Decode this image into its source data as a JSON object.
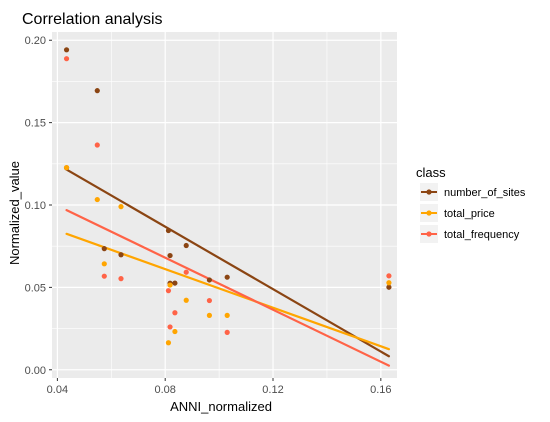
{
  "chart_data": {
    "type": "scatter",
    "title": "Correlation analysis",
    "xlabel": "ANNI_normalized",
    "ylabel": "Normalized_value",
    "xlim": [
      0.038,
      0.166
    ],
    "ylim": [
      -0.005,
      0.205
    ],
    "x_ticks": [
      {
        "value": 0.04,
        "label": "0.04"
      },
      {
        "value": 0.08,
        "label": "0.08"
      },
      {
        "value": 0.12,
        "label": "0.12"
      },
      {
        "value": 0.16,
        "label": "0.16"
      }
    ],
    "y_ticks": [
      {
        "value": 0.0,
        "label": "0.00"
      },
      {
        "value": 0.05,
        "label": "0.05"
      },
      {
        "value": 0.1,
        "label": "0.10"
      },
      {
        "value": 0.15,
        "label": "0.15"
      },
      {
        "value": 0.2,
        "label": "0.20"
      }
    ],
    "grid": true,
    "panel_background": "#ebebeb",
    "legend": {
      "title": "class",
      "position": "right"
    },
    "series": [
      {
        "name": "number_of_sites",
        "color": "#8b4513",
        "points": [
          [
            0.0434,
            0.1942
          ],
          [
            0.0434,
            0.1226
          ],
          [
            0.0548,
            0.1694
          ],
          [
            0.0574,
            0.0735
          ],
          [
            0.0636,
            0.0698
          ],
          [
            0.0812,
            0.0845
          ],
          [
            0.0818,
            0.0693
          ],
          [
            0.0818,
            0.0525
          ],
          [
            0.0836,
            0.0526
          ],
          [
            0.0878,
            0.0754
          ],
          [
            0.0964,
            0.0545
          ],
          [
            0.103,
            0.0562
          ],
          [
            0.163,
            0.0501
          ]
        ],
        "trend": [
          [
            0.0434,
            0.1215
          ],
          [
            0.163,
            0.0082
          ]
        ]
      },
      {
        "name": "total_price",
        "color": "#ffa500",
        "points": [
          [
            0.0434,
            0.1227
          ],
          [
            0.0548,
            0.1033
          ],
          [
            0.0574,
            0.0643
          ],
          [
            0.0636,
            0.099
          ],
          [
            0.0812,
            0.0164
          ],
          [
            0.0818,
            0.0514
          ],
          [
            0.0836,
            0.0232
          ],
          [
            0.0878,
            0.0422
          ],
          [
            0.0964,
            0.033
          ],
          [
            0.103,
            0.033
          ],
          [
            0.163,
            0.0528
          ]
        ],
        "trend": [
          [
            0.0434,
            0.0825
          ],
          [
            0.163,
            0.0125
          ]
        ]
      },
      {
        "name": "total_frequency",
        "color": "#ff6347",
        "points": [
          [
            0.0434,
            0.1888
          ],
          [
            0.0548,
            0.1364
          ],
          [
            0.0574,
            0.0568
          ],
          [
            0.0636,
            0.0553
          ],
          [
            0.0812,
            0.048
          ],
          [
            0.0818,
            0.026
          ],
          [
            0.0836,
            0.0346
          ],
          [
            0.0878,
            0.0592
          ],
          [
            0.0964,
            0.042
          ],
          [
            0.103,
            0.0227
          ],
          [
            0.163,
            0.057
          ]
        ],
        "trend": [
          [
            0.0434,
            0.0969
          ],
          [
            0.163,
            0.0025
          ]
        ]
      }
    ]
  }
}
